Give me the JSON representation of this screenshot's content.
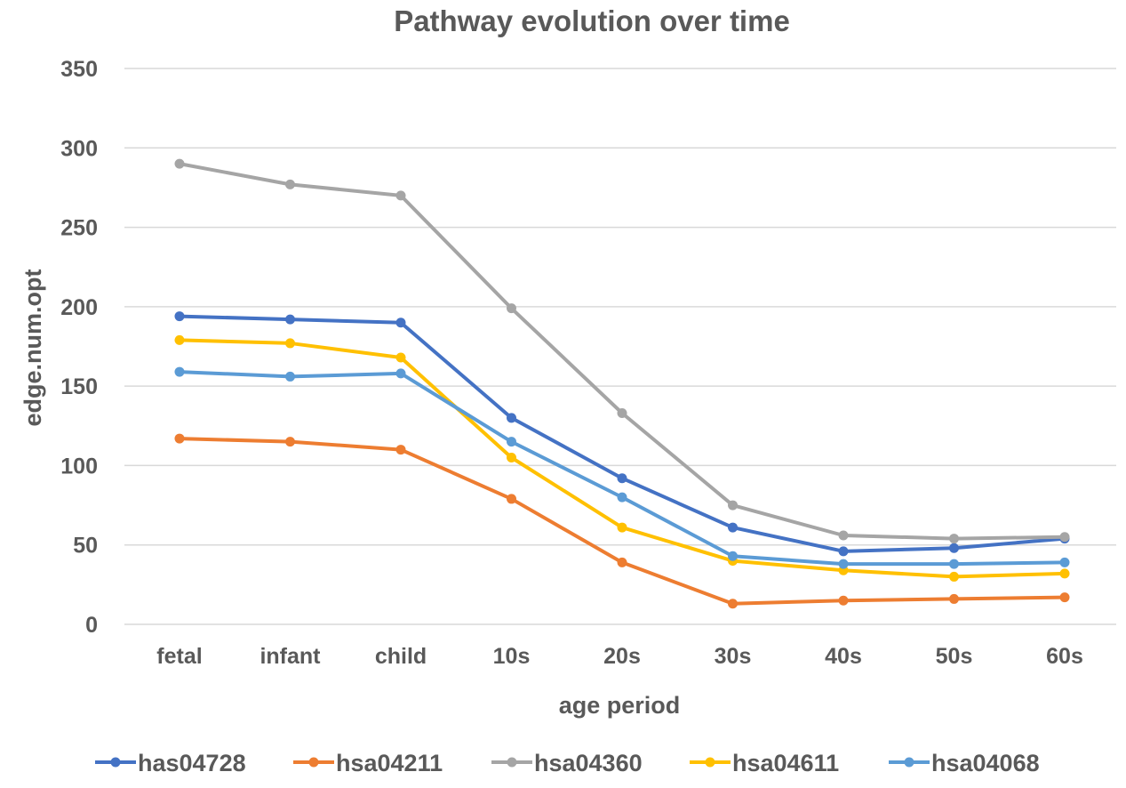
{
  "chart_data": {
    "type": "line",
    "title": "Pathway evolution over time",
    "xlabel": "age period",
    "ylabel": "edge.num.opt",
    "categories": [
      "fetal",
      "infant",
      "child",
      "10s",
      "20s",
      "30s",
      "40s",
      "50s",
      "60s"
    ],
    "ylim": [
      0,
      350
    ],
    "yticks": [
      0,
      50,
      100,
      150,
      200,
      250,
      300,
      350
    ],
    "grid": true,
    "legend_position": "bottom",
    "series": [
      {
        "name": "has04728",
        "color": "#4472C4",
        "values": [
          194,
          192,
          190,
          130,
          92,
          61,
          46,
          48,
          54
        ]
      },
      {
        "name": "hsa04211",
        "color": "#ED7D31",
        "values": [
          117,
          115,
          110,
          79,
          39,
          13,
          15,
          16,
          17
        ]
      },
      {
        "name": "hsa04360",
        "color": "#A5A5A5",
        "values": [
          290,
          277,
          270,
          199,
          133,
          75,
          56,
          54,
          55
        ]
      },
      {
        "name": "hsa04611",
        "color": "#FFC000",
        "values": [
          179,
          177,
          168,
          105,
          61,
          40,
          34,
          30,
          32
        ]
      },
      {
        "name": "hsa04068",
        "color": "#5B9BD5",
        "values": [
          159,
          156,
          158,
          115,
          80,
          43,
          38,
          38,
          39
        ]
      }
    ]
  }
}
